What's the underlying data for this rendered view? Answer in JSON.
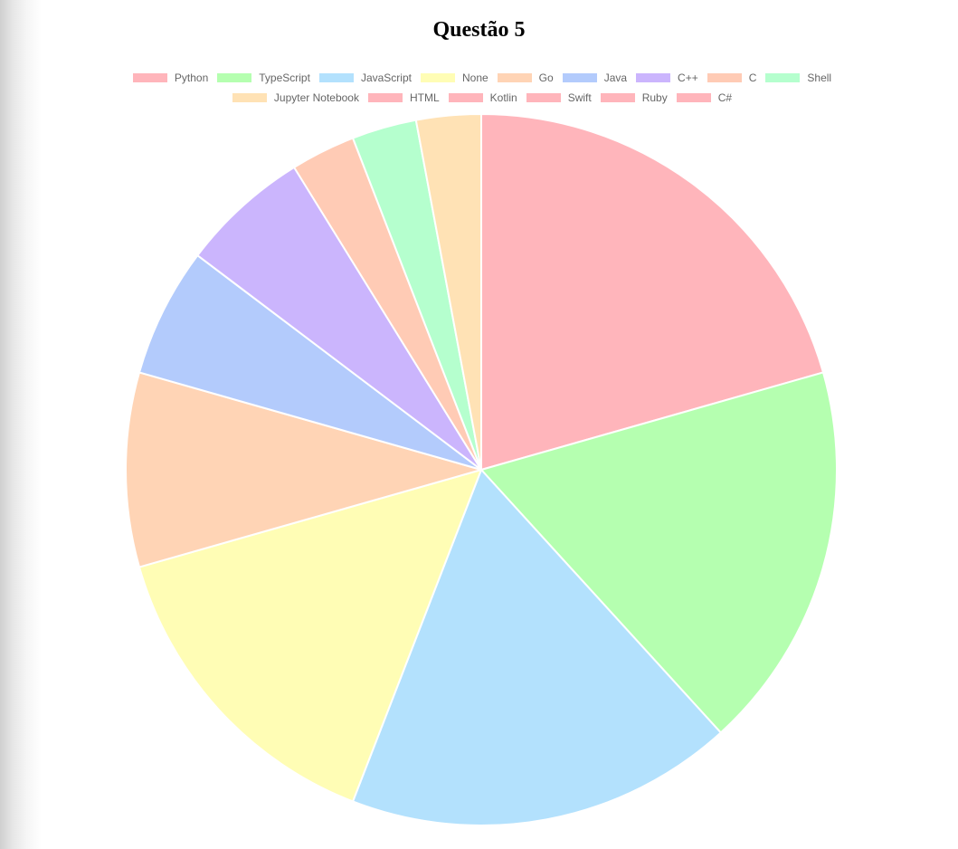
{
  "chart_data": {
    "type": "pie",
    "title": "Questão 5",
    "legend_position": "top",
    "categories": [
      "Python",
      "TypeScript",
      "JavaScript",
      "None",
      "Go",
      "Java",
      "C++",
      "C",
      "Shell",
      "Jupyter Notebook",
      "HTML",
      "Kotlin",
      "Swift",
      "Ruby",
      "C#"
    ],
    "values": [
      7,
      6,
      6,
      5,
      3,
      2,
      2,
      1,
      1,
      1,
      0,
      0,
      0,
      0,
      0
    ],
    "colors": [
      "#ffb5bb",
      "#b5ffb0",
      "#b3e1fd",
      "#fffdb5",
      "#ffd4b5",
      "#b3cbfc",
      "#cbb5fd",
      "#ffcbb5",
      "#b5ffce",
      "#ffe2b5",
      "#ffb5bb",
      "#ffb5bb",
      "#ffb5bb",
      "#ffb5bb",
      "#ffb5bb"
    ]
  }
}
